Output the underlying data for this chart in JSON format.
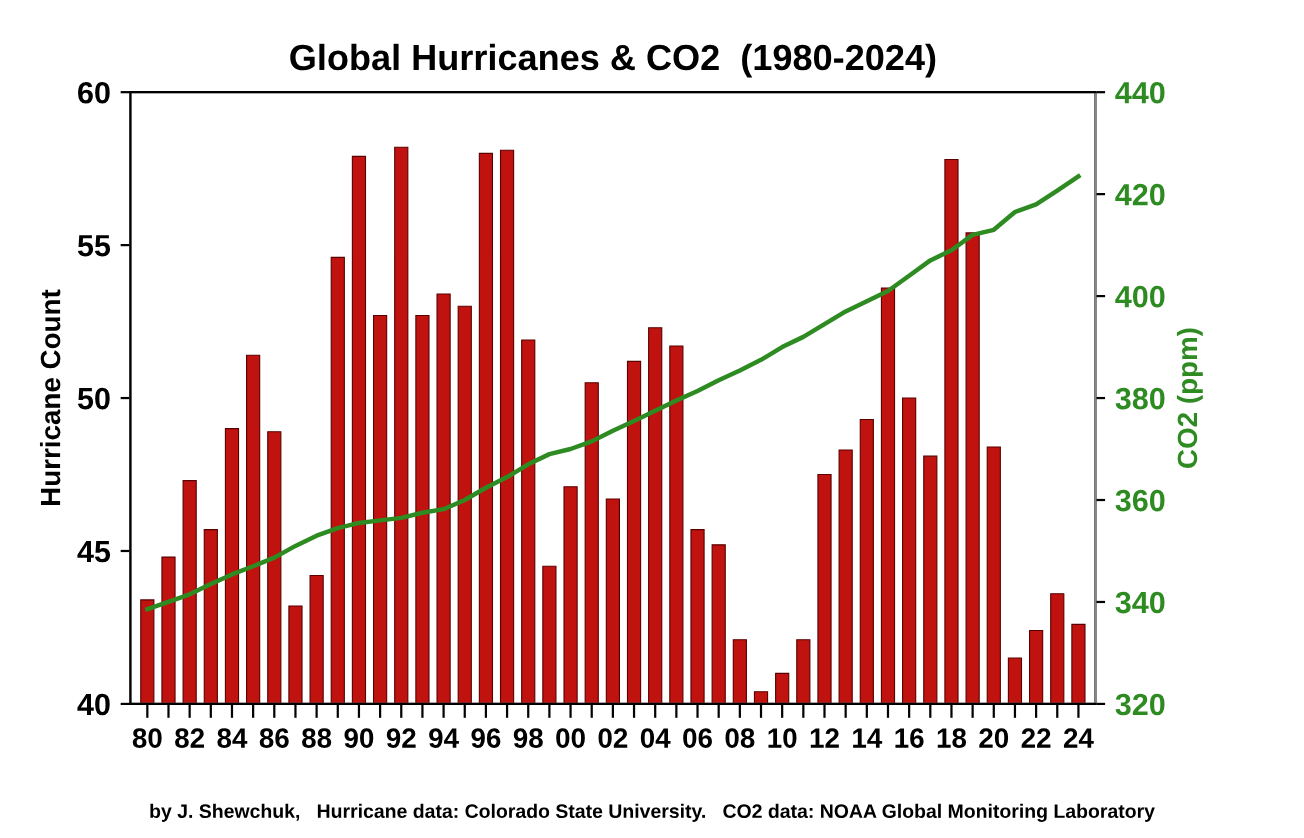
{
  "chart_data": {
    "type": "bar",
    "title": "Global Hurricanes & CO2  (1980-2024)",
    "ylabel": "Hurricane Count",
    "y2label": "CO2 (ppm)",
    "categories": [
      "80",
      null,
      "82",
      null,
      "84",
      null,
      "86",
      null,
      "88",
      null,
      "90",
      null,
      "92",
      null,
      "94",
      null,
      "96",
      null,
      "98",
      null,
      "00",
      null,
      "02",
      null,
      "04",
      null,
      "06",
      null,
      "08",
      null,
      "10",
      null,
      "12",
      null,
      "14",
      null,
      "16",
      null,
      "18",
      null,
      "20",
      null,
      "22",
      null,
      "24"
    ],
    "series": [
      {
        "color": "#c0120f",
        "values": [
          43.4,
          44.8,
          47.3,
          45.7,
          49.0,
          51.4,
          48.9,
          43.2,
          44.2,
          54.6,
          57.9,
          52.7,
          58.2,
          52.7,
          53.4,
          53.0,
          58.0,
          58.1,
          51.9,
          44.5,
          47.1,
          50.5,
          46.7,
          51.2,
          52.3,
          51.7,
          45.7,
          45.2,
          42.1,
          40.4,
          41.0,
          42.1,
          47.5,
          48.3,
          49.3,
          53.6,
          50.0,
          48.1,
          57.8,
          55.4,
          48.4,
          41.5,
          42.4,
          43.6,
          42.6
        ]
      },
      {
        "type": "line",
        "axis": "y2",
        "color": "#2e8b22",
        "values": [
          338.6,
          340,
          341.5,
          343.5,
          345.4,
          347,
          348.7,
          351,
          353,
          354.5,
          355.5,
          356,
          356.5,
          357.5,
          358.2,
          360,
          362.4,
          364.5,
          367,
          369,
          370,
          371.5,
          373.6,
          375.5,
          377.5,
          379.5,
          381.4,
          383.5,
          385.4,
          387.5,
          390,
          392,
          394.5,
          397,
          399,
          401,
          404,
          407,
          409,
          412,
          413,
          416.5,
          418,
          420.7,
          423.5
        ]
      }
    ],
    "ylim": [
      40,
      60
    ],
    "yticks": [
      40,
      45,
      50,
      55,
      60
    ],
    "y2lim": [
      320,
      440
    ],
    "y2ticks": [
      320,
      340,
      360,
      380,
      400,
      420,
      440
    ],
    "grid": false,
    "legend": false,
    "marker": "none",
    "line_style": "solid",
    "annotations": [
      "by J. Shewchuk,   Hurricane data: Colorado State University.   CO2 data: NOAA Global Monitoring Laboratory"
    ]
  }
}
